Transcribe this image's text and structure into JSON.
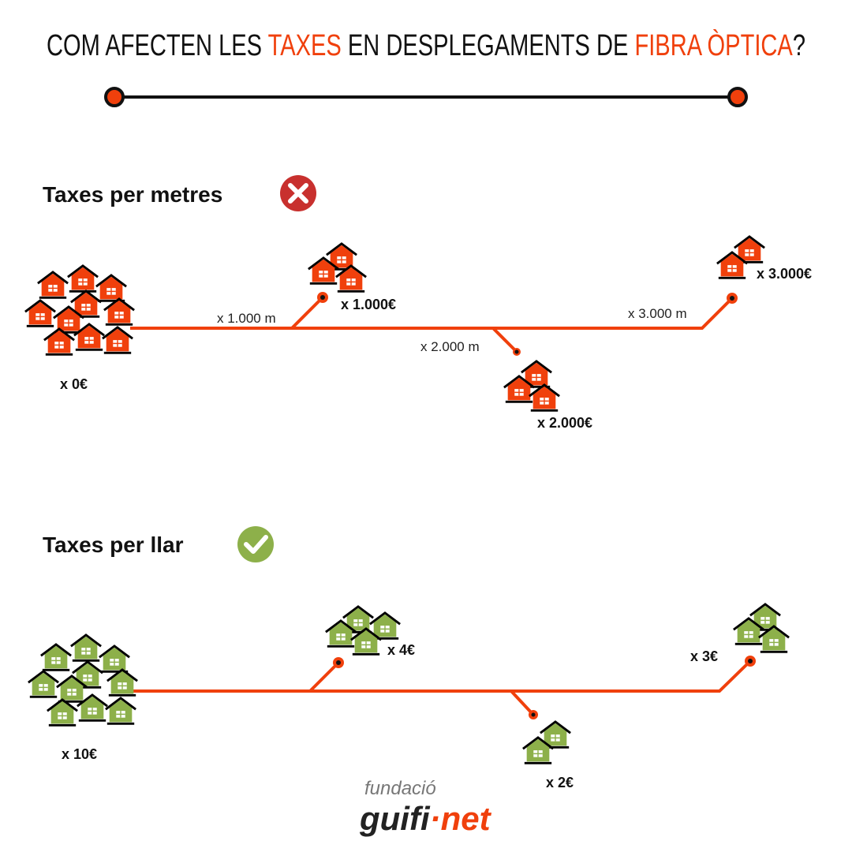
{
  "title": {
    "parts": [
      "COM AFECTEN LES ",
      "TAXES",
      " EN DESPLEGAMENTS DE ",
      "FIBRA ÒPTICA",
      "?"
    ]
  },
  "sections": [
    {
      "heading": "Taxes per metres",
      "origin_label": "x 0€",
      "branches": [
        {
          "distance": "x 1.000 m",
          "cost": "x 1.000€"
        },
        {
          "distance": "x 2.000 m",
          "cost": "x 2.000€"
        },
        {
          "distance": "x 3.000 m",
          "cost": "x 3.000€"
        }
      ]
    },
    {
      "heading": "Taxes per llar",
      "origin_label": "x 10€",
      "branches": [
        {
          "cost": "x 4€"
        },
        {
          "cost": "x 2€"
        },
        {
          "cost": "x 3€"
        }
      ]
    }
  ],
  "logo": {
    "top": "fundació",
    "name_left": "guifi",
    "dot": "·",
    "name_right": "net"
  }
}
